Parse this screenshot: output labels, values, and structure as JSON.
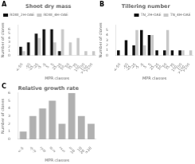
{
  "chart_data": [
    {
      "type": "bar",
      "title": "Shoot dry mass",
      "xlabel": "MPR classes",
      "ylabel": "Number of clones",
      "annotations": [
        "A"
      ],
      "categories": [
        "<-50",
        "-50\n-25",
        "-25\n-5",
        "-5\n5",
        "5\n25",
        "25\n50",
        "50\n75",
        "75\n100",
        "100\n>100",
        ">100"
      ],
      "series": [
        {
          "name": "RDW_2H-OAE",
          "color": "#111111",
          "values": [
            2,
            3,
            5,
            6,
            6,
            1,
            0,
            0,
            0,
            0
          ]
        },
        {
          "name": "RDW_4H-OAE",
          "color": "#c8c8c8",
          "values": [
            1,
            0,
            4,
            0,
            3,
            6,
            3,
            4,
            1,
            1
          ]
        }
      ],
      "ylim": [
        0,
        7
      ],
      "yticks": [
        0,
        1,
        2,
        3,
        4,
        5,
        6
      ],
      "legend": "upper left",
      "grid": false
    },
    {
      "type": "bar",
      "title": "Tillering number",
      "xlabel": "MPR classes",
      "ylabel": "Number of clones",
      "annotations": [
        "B"
      ],
      "categories": [
        "<-50",
        "-50\n-25",
        "-25\n-5",
        "-5\n5",
        "5\n25",
        "25\n50",
        "50\n75",
        "75\n100",
        "100\n>100",
        ">100"
      ],
      "series": [
        {
          "name": "TN_2H-OAE",
          "color": "#111111",
          "values": [
            1,
            3,
            2,
            5,
            4,
            1,
            1,
            1,
            1,
            0
          ]
        },
        {
          "name": "TN_4H-OAE",
          "color": "#c8c8c8",
          "values": [
            0,
            0,
            5,
            2,
            4,
            0,
            5,
            0,
            1,
            1
          ]
        }
      ],
      "ylim": [
        0,
        6
      ],
      "yticks": [
        0,
        1,
        2,
        3,
        4,
        5
      ],
      "legend": "upper right",
      "grid": false
    },
    {
      "type": "bar",
      "title": "Relative growth rate",
      "xlabel": "MPR classes",
      "ylabel": "Number of clones",
      "annotations": [
        "C"
      ],
      "categories": [
        "<-5",
        "-5\n-2",
        "-2\n0",
        "0\n2",
        "2\n5",
        "5\n10",
        "10\n20",
        ">20"
      ],
      "values": [
        1,
        3,
        4,
        5,
        2,
        6,
        3,
        2
      ],
      "color": "#b0b0b0",
      "ylim": [
        0,
        6
      ],
      "yticks": [
        0,
        1,
        2,
        3,
        4,
        5,
        6
      ],
      "grid": false
    }
  ]
}
